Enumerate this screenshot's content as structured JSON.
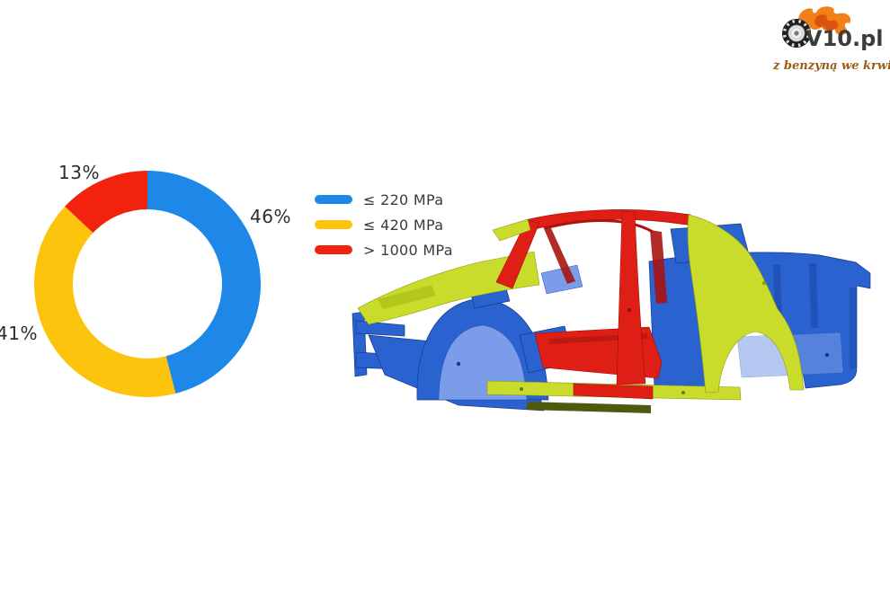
{
  "page": {
    "background": "#ffffff"
  },
  "logo": {
    "brand": "V10.pl",
    "tagline": "z benzyną we krwi",
    "colors": {
      "flame": "#f08018",
      "flame_dark": "#d94e10",
      "tire": "#1f1f1f",
      "text": "#3c3c3c",
      "tagline": "#9a5c14"
    }
  },
  "chart_data": {
    "type": "pie",
    "donut": true,
    "title": "",
    "start_angle_deg": 0,
    "direction": "clockwise",
    "label_format": "percent",
    "legend_position": "right-of-chart",
    "slices": [
      {
        "label": "≤ 220 MPa",
        "value": 46,
        "color": "#1e88e8"
      },
      {
        "label": "≤ 420 MPa",
        "value": 41,
        "color": "#fdc40d"
      },
      {
        "label": "> 1000 MPa",
        "value": 13,
        "color": "#f2230e"
      }
    ]
  },
  "car": {
    "description": "Car body-in-white structure colored by steel strength grade",
    "colors": {
      "blue": "#2a62d0",
      "blue_light": "#7b9ce8",
      "blue_dark": "#1c47a8",
      "lime": "#c9db2b",
      "lime_dark": "#9fb312",
      "red": "#df1f16",
      "red_dark": "#a81410"
    }
  }
}
